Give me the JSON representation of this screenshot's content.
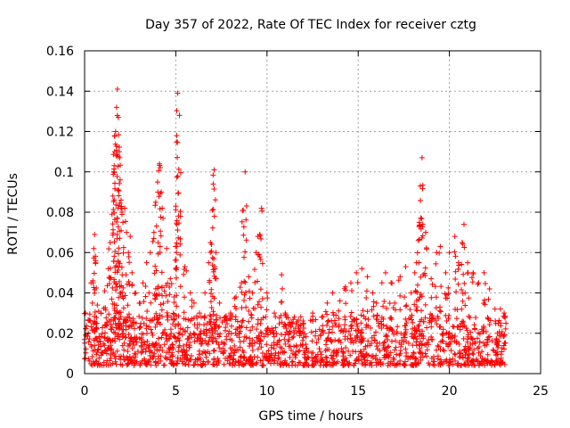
{
  "chart_data": {
    "type": "scatter",
    "title": "Day 357 of 2022, Rate Of TEC Index for receiver cztg",
    "xlabel": "GPS time / hours",
    "ylabel": "ROTI / TECUs",
    "xlim": [
      0,
      25
    ],
    "ylim": [
      0,
      0.16
    ],
    "xticks": [
      0,
      5,
      10,
      15,
      20,
      25
    ],
    "yticks": [
      0,
      0.02,
      0.04,
      0.06,
      0.08,
      0.1,
      0.12,
      0.14,
      0.16
    ],
    "xtick_labels": [
      "0",
      "5",
      "10",
      "15",
      "20",
      "25"
    ],
    "ytick_labels": [
      "0",
      "0.02",
      "0.04",
      "0.06",
      "0.08",
      "0.1",
      "0.12",
      "0.14",
      "0.16"
    ],
    "grid": true,
    "marker": "+",
    "marker_color": "#ff0000",
    "series": [
      {
        "name": "ROTI",
        "x": [
          0.05,
          0.2,
          0.35,
          0.5,
          0.55,
          0.6,
          0.7,
          0.9,
          1.1,
          1.3,
          1.4,
          1.5,
          1.55,
          1.6,
          1.65,
          1.7,
          1.75,
          1.8,
          1.85,
          1.9,
          1.95,
          2.0,
          2.05,
          2.1,
          2.2,
          2.3,
          2.4,
          2.5,
          2.6,
          2.8,
          3.0,
          3.2,
          3.4,
          3.6,
          3.8,
          3.9,
          4.0,
          4.1,
          4.2,
          4.3,
          4.5,
          4.7,
          4.9,
          5.0,
          5.05,
          5.1,
          5.2,
          5.5,
          5.8,
          6.0,
          6.3,
          6.6,
          6.8,
          6.9,
          7.0,
          7.05,
          7.1,
          7.2,
          7.4,
          7.7,
          8.0,
          8.3,
          8.6,
          8.7,
          8.8,
          9.0,
          9.2,
          9.4,
          9.5,
          9.6,
          9.7,
          10.0,
          10.4,
          10.8,
          11.0,
          11.5,
          12.0,
          12.5,
          13.0,
          13.3,
          13.6,
          14.0,
          14.3,
          14.6,
          14.9,
          15.2,
          15.5,
          15.8,
          16.0,
          16.3,
          16.5,
          16.8,
          17.0,
          17.3,
          17.6,
          17.9,
          18.1,
          18.2,
          18.3,
          18.35,
          18.4,
          18.5,
          18.7,
          19.0,
          19.3,
          19.5,
          19.8,
          20.0,
          20.3,
          20.5,
          20.7,
          20.8,
          21.0,
          21.3,
          21.6,
          21.9,
          22.2,
          22.5,
          22.8,
          23.0,
          23.1
        ],
        "y": [
          0.03,
          0.02,
          0.045,
          0.062,
          0.069,
          0.055,
          0.034,
          0.03,
          0.041,
          0.052,
          0.065,
          0.079,
          0.088,
          0.1,
          0.11,
          0.12,
          0.132,
          0.141,
          0.127,
          0.11,
          0.096,
          0.086,
          0.08,
          0.075,
          0.082,
          0.07,
          0.06,
          0.068,
          0.05,
          0.04,
          0.035,
          0.045,
          0.055,
          0.06,
          0.07,
          0.085,
          0.095,
          0.104,
          0.09,
          0.077,
          0.062,
          0.047,
          0.038,
          0.083,
          0.118,
          0.139,
          0.128,
          0.053,
          0.04,
          0.035,
          0.03,
          0.04,
          0.055,
          0.065,
          0.081,
          0.094,
          0.101,
          0.06,
          0.035,
          0.028,
          0.03,
          0.038,
          0.045,
          0.081,
          0.1,
          0.048,
          0.04,
          0.06,
          0.068,
          0.069,
          0.082,
          0.04,
          0.03,
          0.049,
          0.03,
          0.028,
          0.025,
          0.03,
          0.028,
          0.035,
          0.04,
          0.036,
          0.043,
          0.045,
          0.05,
          0.052,
          0.048,
          0.04,
          0.035,
          0.045,
          0.05,
          0.045,
          0.035,
          0.048,
          0.053,
          0.04,
          0.05,
          0.055,
          0.066,
          0.075,
          0.093,
          0.107,
          0.07,
          0.047,
          0.06,
          0.063,
          0.05,
          0.06,
          0.068,
          0.055,
          0.065,
          0.074,
          0.055,
          0.05,
          0.045,
          0.05,
          0.042,
          0.032,
          0.032,
          0.03,
          0.025
        ],
        "baseline_range": [
          0.0,
          0.025
        ],
        "x_coverage": [
          0,
          23.1
        ]
      }
    ]
  }
}
